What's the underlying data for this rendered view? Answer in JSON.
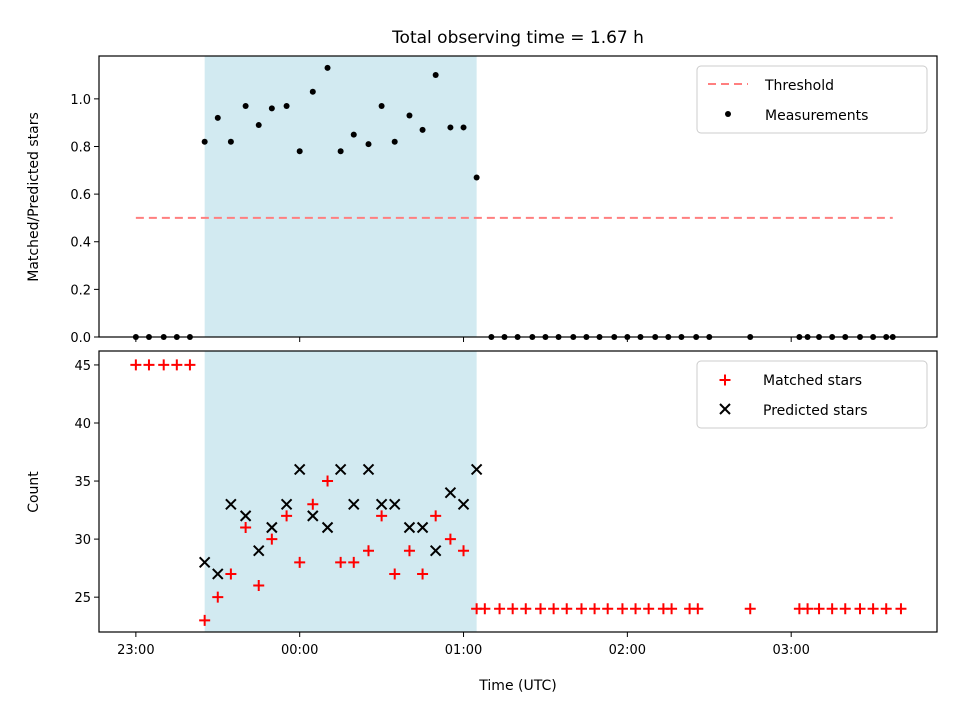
{
  "chart_data": [
    {
      "type": "scatter",
      "title": "Total observing time = 1.67 h",
      "ylabel": "Matched/Predicted stars",
      "xlabel": "",
      "ylim": [
        0,
        1.18
      ],
      "yticks": [
        "0.0",
        "0.2",
        "0.4",
        "0.6",
        "0.8",
        "1.0"
      ],
      "ytick_values": [
        0,
        0.2,
        0.4,
        0.6,
        0.8,
        1.0
      ],
      "shaded_interval": {
        "start_h": 1.42,
        "end_h": 3.08,
        "color": "#add8e6"
      },
      "threshold": {
        "name": "Threshold",
        "value": 0.5,
        "x_range_h": [
          1.0,
          5.62
        ],
        "color": "#ff7f7f"
      },
      "series": [
        {
          "name": "Measurements",
          "color": "#000000",
          "x_h": [
            1.0,
            1.08,
            1.17,
            1.25,
            1.33,
            1.42,
            1.5,
            1.58,
            1.67,
            1.75,
            1.83,
            1.92,
            2.0,
            2.08,
            2.17,
            2.25,
            2.33,
            2.42,
            2.5,
            2.58,
            2.67,
            2.75,
            2.83,
            2.92,
            3.0,
            3.08,
            3.17,
            3.25,
            3.33,
            3.42,
            3.5,
            3.58,
            3.67,
            3.75,
            3.83,
            3.92,
            4.0,
            4.08,
            4.17,
            4.25,
            4.33,
            4.42,
            4.5,
            4.75,
            5.05,
            5.1,
            5.17,
            5.25,
            5.33,
            5.42,
            5.5,
            5.58,
            5.62
          ],
          "y": [
            0,
            0,
            0,
            0,
            0,
            0.82,
            0.92,
            0.82,
            0.97,
            0.89,
            0.96,
            0.97,
            0.78,
            1.03,
            1.13,
            0.78,
            0.85,
            0.81,
            0.97,
            0.82,
            0.93,
            0.87,
            1.1,
            0.88,
            0.88,
            0.67,
            0,
            0,
            0,
            0,
            0,
            0,
            0,
            0,
            0,
            0,
            0,
            0,
            0,
            0,
            0,
            0,
            0,
            0,
            0,
            0,
            0,
            0,
            0,
            0,
            0,
            0,
            0
          ]
        }
      ]
    },
    {
      "type": "scatter",
      "title": "",
      "xlabel": "Time (UTC)",
      "ylabel": "Count",
      "ylim": [
        22,
        46.2
      ],
      "yticks": [
        "25",
        "30",
        "35",
        "40",
        "45"
      ],
      "ytick_values": [
        25,
        30,
        35,
        40,
        45
      ],
      "xticks": [
        "23:00",
        "00:00",
        "01:00",
        "02:00",
        "03:00"
      ],
      "xtick_values_h": [
        1,
        2,
        3,
        4,
        5
      ],
      "xlim_h": [
        0.775,
        5.89
      ],
      "shaded_interval": {
        "start_h": 1.42,
        "end_h": 3.08,
        "color": "#add8e6"
      },
      "series": [
        {
          "name": "Matched stars",
          "marker": "plus",
          "color": "#ff0000",
          "x_h": [
            1.0,
            1.08,
            1.17,
            1.25,
            1.33,
            1.42,
            1.5,
            1.58,
            1.67,
            1.75,
            1.83,
            1.92,
            2.0,
            2.08,
            2.17,
            2.25,
            2.33,
            2.42,
            2.5,
            2.58,
            2.67,
            2.75,
            2.83,
            2.92,
            3.0,
            3.08,
            3.13,
            3.22,
            3.3,
            3.38,
            3.47,
            3.55,
            3.63,
            3.72,
            3.8,
            3.88,
            3.97,
            4.05,
            4.13,
            4.22,
            4.27,
            4.38,
            4.43,
            4.75,
            5.05,
            5.1,
            5.17,
            5.25,
            5.33,
            5.42,
            5.5,
            5.58,
            5.67
          ],
          "y": [
            45,
            45,
            45,
            45,
            45,
            23,
            25,
            27,
            31,
            26,
            30,
            32,
            28,
            33,
            35,
            28,
            28,
            29,
            32,
            27,
            29,
            27,
            32,
            30,
            29,
            24,
            24,
            24,
            24,
            24,
            24,
            24,
            24,
            24,
            24,
            24,
            24,
            24,
            24,
            24,
            24,
            24,
            24,
            24,
            24,
            24,
            24,
            24,
            24,
            24,
            24,
            24,
            24
          ]
        },
        {
          "name": "Predicted stars",
          "marker": "x",
          "color": "#000000",
          "x_h": [
            1.42,
            1.5,
            1.58,
            1.67,
            1.75,
            1.83,
            1.92,
            2.0,
            2.08,
            2.17,
            2.25,
            2.33,
            2.42,
            2.5,
            2.58,
            2.67,
            2.75,
            2.83,
            2.92,
            3.0,
            3.08
          ],
          "y": [
            28,
            27,
            33,
            32,
            29,
            31,
            33,
            36,
            32,
            31,
            36,
            33,
            36,
            33,
            33,
            31,
            31,
            29,
            34,
            33,
            36
          ]
        }
      ]
    }
  ]
}
